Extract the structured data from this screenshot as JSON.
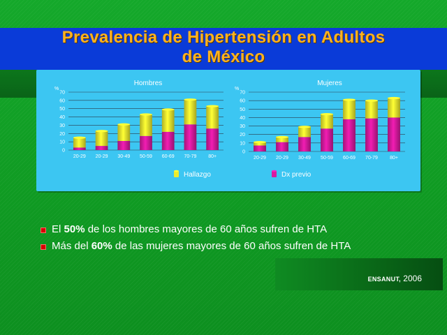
{
  "slide": {
    "title_line1": "Prevalencia de Hipertensión en Adultos",
    "title_line2": "de México"
  },
  "colors": {
    "background": "#14a82a",
    "title_bar": "#0a3bd8",
    "title_text": "#ffb21e",
    "chart_panel": "#3cc6f2",
    "series_hallazgo": "#ecec2e",
    "series_dx_previo": "#d81aa0"
  },
  "chart_data": [
    {
      "type": "bar",
      "stacked": true,
      "title": "Hombres",
      "ylabel": "%",
      "ylim": [
        0,
        70
      ],
      "yticks": [
        0,
        10,
        20,
        30,
        40,
        50,
        60,
        70
      ],
      "categories": [
        "20-29",
        "20-29",
        "30-49",
        "50-59",
        "60-69",
        "70-79",
        "80+"
      ],
      "series": [
        {
          "name": "Dx previo",
          "color": "#d81aa0",
          "values": [
            3,
            5,
            11,
            17,
            22,
            31,
            26
          ]
        },
        {
          "name": "Hallazgo",
          "color": "#ecec2e",
          "values": [
            12,
            18,
            20,
            26,
            27,
            30,
            27
          ]
        }
      ],
      "grid": true
    },
    {
      "type": "bar",
      "stacked": true,
      "title": "Mujeres",
      "ylabel": "%",
      "ylim": [
        0,
        70
      ],
      "yticks": [
        0,
        10,
        20,
        30,
        40,
        50,
        60,
        70
      ],
      "categories": [
        "20-29",
        "20-29",
        "30-49",
        "50-59",
        "60-69",
        "70-79",
        "80+"
      ],
      "series": [
        {
          "name": "Dx previo",
          "color": "#d81aa0",
          "values": [
            7,
            11,
            17,
            27,
            38,
            39,
            40
          ]
        },
        {
          "name": "Hallazgo",
          "color": "#ecec2e",
          "values": [
            4,
            6,
            12,
            17,
            23,
            21,
            23
          ]
        }
      ],
      "grid": true
    }
  ],
  "legend": {
    "items": [
      {
        "label": "Hallazgo",
        "color": "#ecec2e"
      },
      {
        "label": "Dx previo",
        "color": "#d81aa0"
      }
    ]
  },
  "bullets": [
    {
      "pre": "El ",
      "bold": "50%",
      "post": " de los hombres mayores de 60 años sufren de HTA"
    },
    {
      "pre": "Más del ",
      "bold": "60%",
      "post": " de las mujeres mayores de 60 años sufren de HTA"
    }
  ],
  "source": {
    "org": "ENSANUT,",
    "year": " 2006"
  }
}
